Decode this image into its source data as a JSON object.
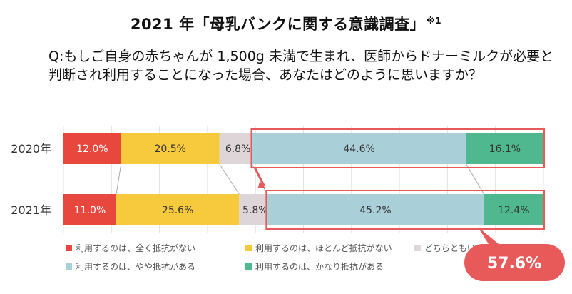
{
  "header": {
    "title": "2021 年「母乳バンクに関する意識調査」",
    "title_note": "※1",
    "question": "Q:もしご自身の赤ちゃんが 1,500g 未満で生まれ、医師からドナーミルクが必要と判断され利用することになった場合、あなたはどのように思いますか？"
  },
  "chart_data": {
    "type": "bar",
    "orientation": "horizontal-stacked-100",
    "categories": [
      "2020年",
      "2021年"
    ],
    "series": [
      {
        "name": "利用するのは、全く抵抗がない",
        "color": "#e8473e",
        "values": [
          12.0,
          11.0
        ],
        "labels": [
          "12.0%",
          "11.0%"
        ]
      },
      {
        "name": "利用するのは、ほとんど抵抗がない",
        "color": "#f7c93c",
        "values": [
          20.5,
          25.6
        ],
        "labels": [
          "20.5%",
          "25.6%"
        ]
      },
      {
        "name": "どちらともいえない",
        "color": "#ddd5d8",
        "values": [
          6.8,
          5.8
        ],
        "labels": [
          "6.8%",
          "5.8%"
        ]
      },
      {
        "name": "利用するのは、やや抵抗がある",
        "color": "#a9cfd9",
        "values": [
          44.6,
          45.2
        ],
        "labels": [
          "44.6%",
          "45.2%"
        ]
      },
      {
        "name": "利用するのは、かなり抵抗がある",
        "color": "#4fb88e",
        "values": [
          16.1,
          12.4
        ],
        "labels": [
          "16.1%",
          "12.4%"
        ]
      }
    ],
    "xlim": [
      0,
      100
    ],
    "grid": true,
    "legend_position": "bottom",
    "legend_visible_text": [
      "利用するのは、全く抵抗がない",
      "利用するのは、ほとんど抵抗がない",
      "どちらともい",
      "利用するのは、やや抵抗がある",
      "利用するのは、かなり抵抗がある"
    ],
    "highlight": {
      "color": "#e85a5a",
      "series_indices": [
        3,
        4
      ],
      "callout_value": "57.6%"
    }
  }
}
